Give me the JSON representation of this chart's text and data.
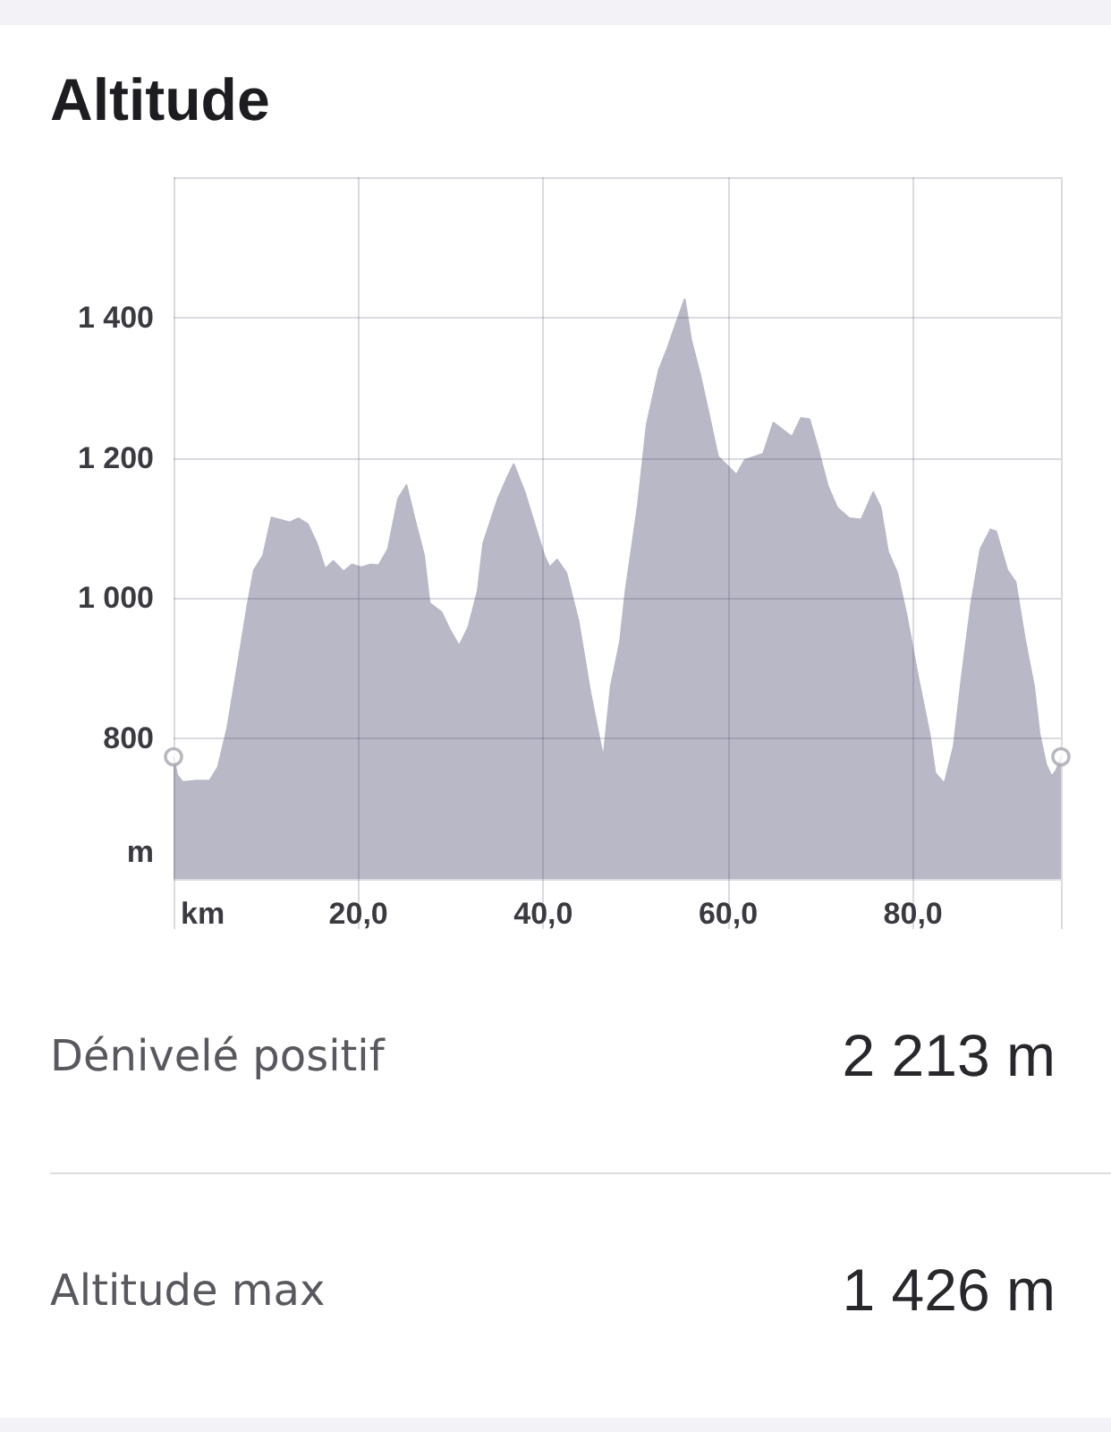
{
  "chart_data": {
    "type": "area",
    "title": "Altitude",
    "xlabel": "km",
    "ylabel": "m",
    "series": [
      {
        "color": "#b8b8c6",
        "x": [
          0,
          0.4,
          1.0,
          2.5,
          3.9,
          4.8,
          5.8,
          7.1,
          8.0,
          8.7,
          9.7,
          10.6,
          12.6,
          13.5,
          14.5,
          15.5,
          16.4,
          17.3,
          18.4,
          19.3,
          20.3,
          21.3,
          22.2,
          23.2,
          24.3,
          25.2,
          26.1,
          27.1,
          27.7,
          29.0,
          29.9,
          30.9,
          31.9,
          32.9,
          33.5,
          35.1,
          36.1,
          36.8,
          38.0,
          39.0,
          40.1,
          40.7,
          41.5,
          42.5,
          43.8,
          45.1,
          46.5,
          47.3,
          48.3,
          48.9,
          50.2,
          51.2,
          52.5,
          53.4,
          54.4,
          55.3,
          56.0,
          57.0,
          58.0,
          58.9,
          59.9,
          60.9,
          61.8,
          63.8,
          64.9,
          66.9,
          67.9,
          68.8,
          69.7,
          70.8,
          71.8,
          73.1,
          74.4,
          75.7,
          76.5,
          77.3,
          78.3,
          79.3,
          80.5,
          81.8,
          82.4,
          83.4,
          84.4,
          85.3,
          86.3,
          87.3,
          88.4,
          89.0,
          90.2,
          91.1,
          92.1,
          93.1,
          93.7,
          94.4,
          95.0,
          95.5,
          96.0
        ],
        "values": [
          774,
          748,
          738,
          740,
          740,
          759,
          814,
          917,
          990,
          1040,
          1061,
          1115,
          1108,
          1114,
          1106,
          1078,
          1042,
          1053,
          1038,
          1048,
          1044,
          1048,
          1047,
          1070,
          1142,
          1161,
          1112,
          1061,
          993,
          980,
          955,
          932,
          959,
          1010,
          1078,
          1142,
          1172,
          1191,
          1151,
          1108,
          1061,
          1044,
          1055,
          1036,
          968,
          865,
          772,
          874,
          938,
          1010,
          1129,
          1248,
          1325,
          1355,
          1393,
          1426,
          1368,
          1317,
          1257,
          1202,
          1189,
          1176,
          1197,
          1206,
          1250,
          1230,
          1257,
          1255,
          1214,
          1159,
          1129,
          1114,
          1112,
          1151,
          1129,
          1066,
          1036,
          976,
          891,
          806,
          751,
          736,
          789,
          891,
          993,
          1070,
          1098,
          1095,
          1040,
          1023,
          942,
          874,
          806,
          763,
          746,
          755,
          774
        ]
      },
      {
        "type": "scatter",
        "marker": "circle",
        "color": "#a6a6b2",
        "x": [
          0,
          96
        ],
        "values": [
          774,
          774
        ]
      }
    ],
    "xlim": [
      0,
      96
    ],
    "xticks": [
      {
        "value": 0,
        "label": null
      },
      {
        "value": 20,
        "label": "20,0"
      },
      {
        "value": 40,
        "label": "40,0"
      },
      {
        "value": 60,
        "label": "60,0"
      },
      {
        "value": 80,
        "label": "80,0"
      },
      {
        "value": 96,
        "label": null
      }
    ],
    "ylim": [
      600,
      1600
    ],
    "yticks": [
      {
        "value": 600,
        "label": null
      },
      800,
      {
        "value": 1000,
        "label": "1 000"
      },
      {
        "value": 1200,
        "label": "1 200"
      },
      {
        "value": 1400,
        "label": "1 400"
      },
      {
        "value": 1600,
        "label": null
      }
    ],
    "grid": true,
    "annotations": [
      "Dénivelé positif",
      "2 213 m",
      "Altitude max",
      "1 426 m"
    ]
  }
}
